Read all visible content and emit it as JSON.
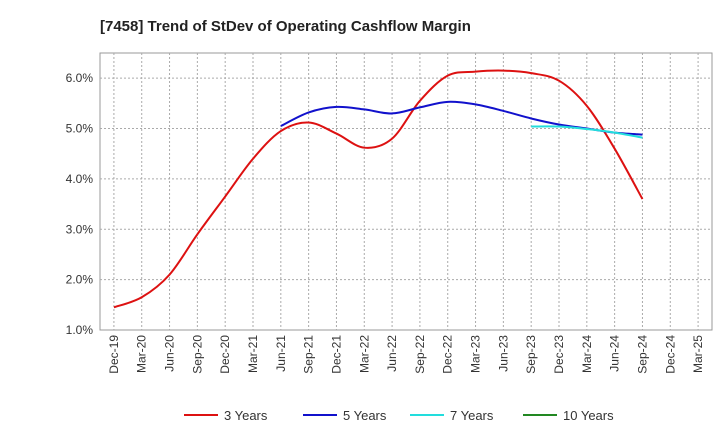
{
  "chart_data": {
    "type": "line",
    "title": "[7458]  Trend of StDev of Operating Cashflow Margin",
    "xlabel": "",
    "ylabel": "",
    "x_ticks": [
      "Dec-19",
      "Mar-20",
      "Jun-20",
      "Sep-20",
      "Dec-20",
      "Mar-21",
      "Jun-21",
      "Sep-21",
      "Dec-21",
      "Mar-22",
      "Jun-22",
      "Sep-22",
      "Dec-22",
      "Mar-23",
      "Jun-23",
      "Sep-23",
      "Dec-23",
      "Mar-24",
      "Jun-24",
      "Sep-24",
      "Dec-24",
      "Mar-25"
    ],
    "y_ticks": [
      "1.0%",
      "2.0%",
      "3.0%",
      "4.0%",
      "5.0%",
      "6.0%"
    ],
    "ylim": [
      1.0,
      6.5
    ],
    "grid": true,
    "legend_position": "bottom",
    "series": [
      {
        "name": "3 Years",
        "color": "#dd1111",
        "x": [
          "Dec-19",
          "Mar-20",
          "Jun-20",
          "Sep-20",
          "Dec-20",
          "Mar-21",
          "Jun-21",
          "Sep-21",
          "Dec-21",
          "Mar-22",
          "Jun-22",
          "Sep-22",
          "Dec-22",
          "Mar-23",
          "Jun-23",
          "Sep-23",
          "Dec-23",
          "Mar-24",
          "Jun-24",
          "Sep-24"
        ],
        "values": [
          1.45,
          1.65,
          2.1,
          2.9,
          3.65,
          4.4,
          4.95,
          5.12,
          4.9,
          4.62,
          4.8,
          5.55,
          6.05,
          6.13,
          6.15,
          6.1,
          5.95,
          5.45,
          4.6,
          3.6
        ]
      },
      {
        "name": "5 Years",
        "color": "#1111cc",
        "x": [
          "Jun-21",
          "Sep-21",
          "Dec-21",
          "Mar-22",
          "Jun-22",
          "Sep-22",
          "Dec-22",
          "Mar-23",
          "Jun-23",
          "Sep-23",
          "Dec-23",
          "Mar-24",
          "Jun-24",
          "Sep-24"
        ],
        "values": [
          5.05,
          5.32,
          5.43,
          5.38,
          5.3,
          5.42,
          5.53,
          5.48,
          5.35,
          5.2,
          5.08,
          5.0,
          4.92,
          4.88
        ]
      },
      {
        "name": "7 Years",
        "color": "#22dddd",
        "x": [
          "Sep-23",
          "Dec-23",
          "Mar-24",
          "Jun-24",
          "Sep-24"
        ],
        "values": [
          5.04,
          5.04,
          4.99,
          4.92,
          4.82
        ]
      },
      {
        "name": "10 Years",
        "color": "#228822",
        "x": [],
        "values": []
      }
    ]
  }
}
